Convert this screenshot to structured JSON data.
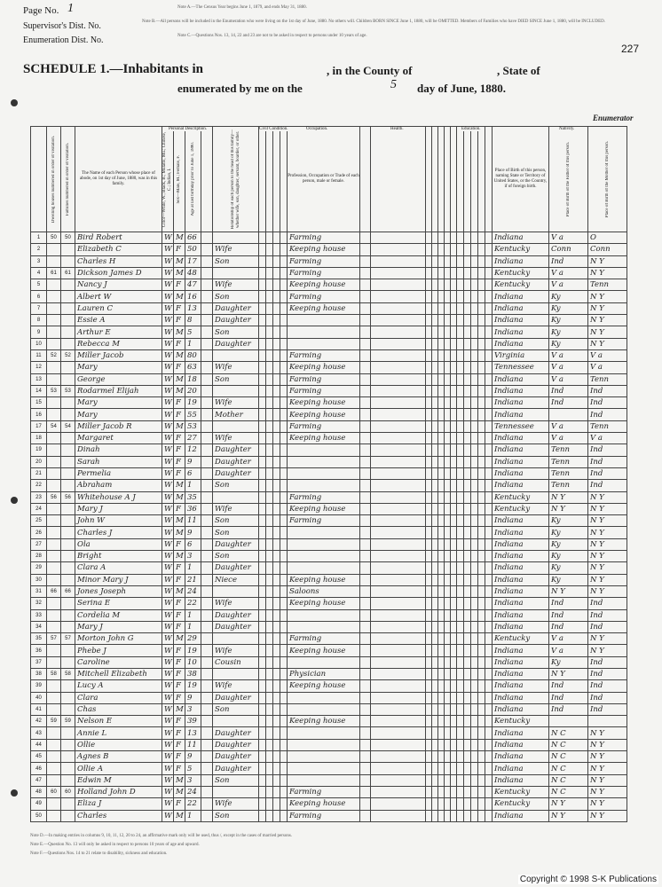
{
  "header": {
    "page_label": "Page No.",
    "page_no": "1",
    "supervisor": "Supervisor's Dist. No.",
    "enumeration": "Enumeration Dist. No.",
    "sheet": "227",
    "note_a": "Note A.—The Census Year begins June 1, 1879, and ends May 31, 1880.",
    "note_b": "Note B.—All persons will be included in the Enumeration who were living on the 1st day of June, 1880. No others will. Children BORN SINCE June 1, 1880, will be OMITTED. Members of Families who have DIED SINCE June 1, 1880, will be INCLUDED.",
    "note_c": "Note C.—Questions Nos. 13, 14, 22 and 23 are not to be asked in respect to persons under 10 years of age.",
    "schedule": "SCHEDULE 1.—Inhabitants in",
    "county": ", in the County of",
    "state": ", State of",
    "enumerated": "enumerated by me on the",
    "day": "5",
    "month": "day of June, 1880.",
    "enumerator": "Enumerator"
  },
  "groups": {
    "personal": "Personal Description.",
    "civil": "Civil Condition.",
    "occupation": "Occupation.",
    "health": "Health.",
    "education": "Education.",
    "nativity": "Nativity."
  },
  "table": {
    "headers": [
      "Dwelling houses numbered in order of visitation.",
      "Families numbered in order of visitation.",
      "The Name of each Person whose place of abode, on 1st day of June, 1880, was in this family.",
      "Color—White, W.; Black, B.; Mulatto, Mu.; Chinese, C.; Indian, I.",
      "Sex—Male, M.; Female, F.",
      "Age at last birthday prior to June 1, 1880.",
      "Relationship of each person to the head of this family—whether wife, son, daughter, servant, boarder, or other.",
      "Profession, Occupation or Trade of each person, male or female.",
      "Place of Birth of this person, naming State or Territory of United States, or the Country, if of foreign birth.",
      "Place of Birth of the Father of this person.",
      "Place of Birth of the Mother of this person."
    ],
    "rows": [
      [
        1,
        50,
        50,
        "Bird Robert",
        "W",
        "M",
        66,
        null,
        "Farming",
        "Indiana",
        "V a",
        "O"
      ],
      [
        2,
        null,
        null,
        "Elizabeth C",
        "W",
        "F",
        50,
        "Wife",
        "Keeping house",
        "Kentucky",
        "Conn",
        "Conn"
      ],
      [
        3,
        null,
        null,
        "Charles H",
        "W",
        "M",
        17,
        "Son",
        "Farming",
        "Indiana",
        "Ind",
        "N Y"
      ],
      [
        4,
        61,
        61,
        "Dickson James D",
        "W",
        "M",
        48,
        null,
        "Farming",
        "Kentucky",
        "V a",
        "N Y"
      ],
      [
        5,
        null,
        null,
        "Nancy J",
        "W",
        "F",
        47,
        "Wife",
        "Keeping house",
        "Kentucky",
        "V a",
        "Tenn"
      ],
      [
        6,
        null,
        null,
        "Albert W",
        "W",
        "M",
        16,
        "Son",
        "Farming",
        "Indiana",
        "Ky",
        "N Y"
      ],
      [
        7,
        null,
        null,
        "Lauren C",
        "W",
        "F",
        13,
        "Daughter",
        "Keeping house",
        "Indiana",
        "Ky",
        "N Y"
      ],
      [
        8,
        null,
        null,
        "Essie A",
        "W",
        "F",
        8,
        "Daughter",
        null,
        "Indiana",
        "Ky",
        "N Y"
      ],
      [
        9,
        null,
        null,
        "Arthur E",
        "W",
        "M",
        5,
        "Son",
        null,
        "Indiana",
        "Ky",
        "N Y"
      ],
      [
        10,
        null,
        null,
        "Rebecca M",
        "W",
        "F",
        1,
        "Daughter",
        null,
        "Indiana",
        "Ky",
        "N Y"
      ],
      [
        11,
        52,
        52,
        "Miller Jacob",
        "W",
        "M",
        80,
        null,
        "Farming",
        "Virginia",
        "V a",
        "V a"
      ],
      [
        12,
        null,
        null,
        "Mary",
        "W",
        "F",
        63,
        "Wife",
        "Keeping house",
        "Tennessee",
        "V a",
        "V a"
      ],
      [
        13,
        null,
        null,
        "George",
        "W",
        "M",
        18,
        "Son",
        "Farming",
        "Indiana",
        "V a",
        "Tenn"
      ],
      [
        14,
        53,
        53,
        "Rodarmel Elijah",
        "W",
        "M",
        20,
        null,
        "Farming",
        "Indiana",
        "Ind",
        "Ind"
      ],
      [
        15,
        null,
        null,
        "Mary",
        "W",
        "F",
        19,
        "Wife",
        "Keeping house",
        "Indiana",
        "Ind",
        "Ind"
      ],
      [
        16,
        null,
        null,
        "Mary",
        "W",
        "F",
        55,
        "Mother",
        "Keeping house",
        "Indiana",
        null,
        "Ind"
      ],
      [
        17,
        54,
        54,
        "Miller Jacob R",
        "W",
        "M",
        53,
        null,
        "Farming",
        "Tennessee",
        "V a",
        "Tenn"
      ],
      [
        18,
        null,
        null,
        "Margaret",
        "W",
        "F",
        27,
        "Wife",
        "Keeping house",
        "Indiana",
        "V a",
        "V a"
      ],
      [
        19,
        null,
        null,
        "Dinah",
        "W",
        "F",
        12,
        "Daughter",
        null,
        "Indiana",
        "Tenn",
        "Ind"
      ],
      [
        20,
        null,
        null,
        "Sarah",
        "W",
        "F",
        9,
        "Daughter",
        null,
        "Indiana",
        "Tenn",
        "Ind"
      ],
      [
        21,
        null,
        null,
        "Permelia",
        "W",
        "F",
        6,
        "Daughter",
        null,
        "Indiana",
        "Tenn",
        "Ind"
      ],
      [
        22,
        null,
        null,
        "Abraham",
        "W",
        "M",
        1,
        "Son",
        null,
        "Indiana",
        "Tenn",
        "Ind"
      ],
      [
        23,
        56,
        56,
        "Whitehouse A J",
        "W",
        "M",
        35,
        null,
        "Farming",
        "Kentucky",
        "N Y",
        "N Y"
      ],
      [
        24,
        null,
        null,
        "Mary J",
        "W",
        "F",
        36,
        "Wife",
        "Keeping house",
        "Kentucky",
        "N Y",
        "N Y"
      ],
      [
        25,
        null,
        null,
        "John W",
        "W",
        "M",
        11,
        "Son",
        "Farming",
        "Indiana",
        "Ky",
        "N Y"
      ],
      [
        26,
        null,
        null,
        "Charles J",
        "W",
        "M",
        9,
        "Son",
        null,
        "Indiana",
        "Ky",
        "N Y"
      ],
      [
        27,
        null,
        null,
        "Ola",
        "W",
        "F",
        6,
        "Daughter",
        null,
        "Indiana",
        "Ky",
        "N Y"
      ],
      [
        28,
        null,
        null,
        "Bright",
        "W",
        "M",
        3,
        "Son",
        null,
        "Indiana",
        "Ky",
        "N Y"
      ],
      [
        29,
        null,
        null,
        "Clara A",
        "W",
        "F",
        1,
        "Daughter",
        null,
        "Indiana",
        "Ky",
        "N Y"
      ],
      [
        30,
        null,
        null,
        "Minor Mary J",
        "W",
        "F",
        21,
        "Niece",
        "Keeping house",
        "Indiana",
        "Ky",
        "N Y"
      ],
      [
        31,
        66,
        66,
        "Jones Joseph",
        "W",
        "M",
        24,
        null,
        "Saloons",
        "Indiana",
        "N Y",
        "N Y"
      ],
      [
        32,
        null,
        null,
        "Serina E",
        "W",
        "F",
        22,
        "Wife",
        "Keeping house",
        "Indiana",
        "Ind",
        "Ind"
      ],
      [
        33,
        null,
        null,
        "Cordelia M",
        "W",
        "F",
        1,
        "Daughter",
        null,
        "Indiana",
        "Ind",
        "Ind"
      ],
      [
        34,
        null,
        null,
        "Mary J",
        "W",
        "F",
        1,
        "Daughter",
        null,
        "Indiana",
        "Ind",
        "Ind"
      ],
      [
        35,
        57,
        57,
        "Morton John G",
        "W",
        "M",
        29,
        null,
        "Farming",
        "Kentucky",
        "V a",
        "N Y"
      ],
      [
        36,
        null,
        null,
        "Phebe J",
        "W",
        "F",
        19,
        "Wife",
        "Keeping house",
        "Indiana",
        "V a",
        "N Y"
      ],
      [
        37,
        null,
        null,
        "Caroline",
        "W",
        "F",
        10,
        "Cousin",
        null,
        "Indiana",
        "Ky",
        "Ind"
      ],
      [
        38,
        58,
        58,
        "Mitchell Elizabeth",
        "W",
        "F",
        38,
        null,
        "Physician",
        "Indiana",
        "N Y",
        "Ind"
      ],
      [
        39,
        null,
        null,
        "Lucy A",
        "W",
        "F",
        19,
        "Wife",
        "Keeping house",
        "Indiana",
        "Ind",
        "Ind"
      ],
      [
        40,
        null,
        null,
        "Clara",
        "W",
        "F",
        9,
        "Daughter",
        null,
        "Indiana",
        "Ind",
        "Ind"
      ],
      [
        41,
        null,
        null,
        "Chas",
        "W",
        "M",
        3,
        "Son",
        null,
        "Indiana",
        "Ind",
        "Ind"
      ],
      [
        42,
        59,
        59,
        "Nelson E",
        "W",
        "F",
        39,
        null,
        "Keeping house",
        "Kentucky",
        null,
        null
      ],
      [
        43,
        null,
        null,
        "Annie L",
        "W",
        "F",
        13,
        "Daughter",
        null,
        "Indiana",
        "N C",
        "N Y"
      ],
      [
        44,
        null,
        null,
        "Ollie",
        "W",
        "F",
        11,
        "Daughter",
        null,
        "Indiana",
        "N C",
        "N Y"
      ],
      [
        45,
        null,
        null,
        "Agnes B",
        "W",
        "F",
        9,
        "Daughter",
        null,
        "Indiana",
        "N C",
        "N Y"
      ],
      [
        46,
        null,
        null,
        "Ollie A",
        "W",
        "F",
        5,
        "Daughter",
        null,
        "Indiana",
        "N C",
        "N Y"
      ],
      [
        47,
        null,
        null,
        "Edwin M",
        "W",
        "M",
        3,
        "Son",
        null,
        "Indiana",
        "N C",
        "N Y"
      ],
      [
        48,
        60,
        60,
        "Holland John D",
        "W",
        "M",
        24,
        null,
        "Farming",
        "Kentucky",
        "N C",
        "N Y"
      ],
      [
        49,
        null,
        null,
        "Eliza J",
        "W",
        "F",
        22,
        "Wife",
        "Keeping house",
        "Kentucky",
        "N Y",
        "N Y"
      ],
      [
        50,
        null,
        null,
        "Charles",
        "W",
        "M",
        1,
        "Son",
        "Farming",
        "Indiana",
        "N Y",
        "N Y"
      ]
    ]
  },
  "footer": {
    "note_d": "Note D.—In making entries in columns 9, 10, 11, 12, 20 to 24, an affirmative mark only will be used, thus /, except in the cases of married persons.",
    "note_e": "Note E.—Question No. 13 will only be asked in respect to persons 10 years of age and upward.",
    "note_f": "Note F.—Questions Nos. 14 to 21 relate to disability, sickness and education.",
    "copyright": "Copyright © 1998 S-K Publications"
  }
}
